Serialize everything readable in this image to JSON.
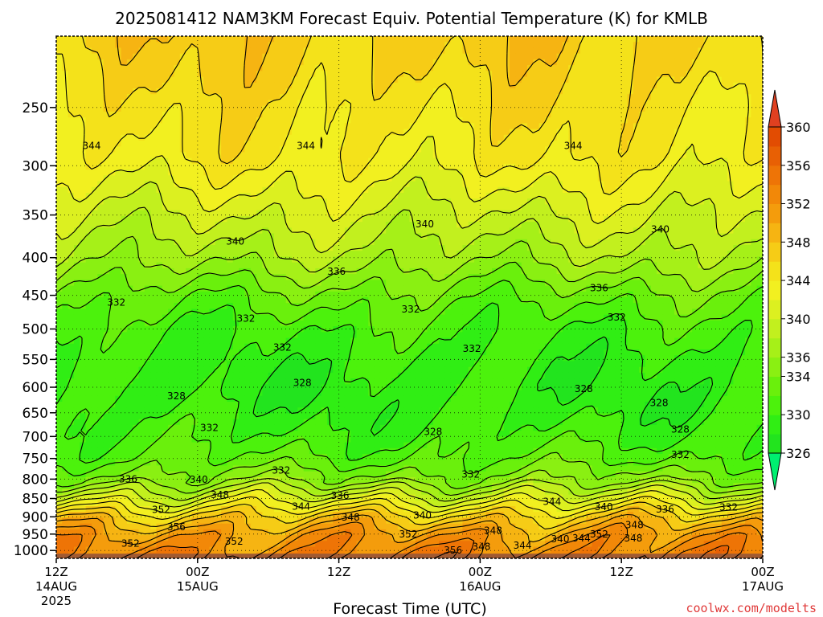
{
  "chart_data": {
    "type": "heatmap",
    "title": "2025081412 NAM3KM Forecast Equiv. Potential Temperature (K) for KMLB",
    "xlabel": "Forecast Time (UTC)",
    "ylabel": "",
    "y_scale": "log",
    "y_reversed": true,
    "ylim": [
      1025,
      200
    ],
    "y_ticks": [
      250,
      300,
      350,
      400,
      450,
      500,
      550,
      600,
      650,
      700,
      750,
      800,
      850,
      900,
      950,
      1000
    ],
    "y_tick_labels": [
      "250",
      "300",
      "350",
      "400",
      "450",
      "500",
      "550",
      "600",
      "650",
      "700",
      "750",
      "800",
      "850",
      "900",
      "950",
      "1000"
    ],
    "x_ticks": [
      {
        "hour": 0,
        "line1": "12Z",
        "line2": "14AUG",
        "line3": "2025"
      },
      {
        "hour": 12,
        "line1": "00Z",
        "line2": "15AUG",
        "line3": ""
      },
      {
        "hour": 24,
        "line1": "12Z",
        "line2": "",
        "line3": ""
      },
      {
        "hour": 36,
        "line1": "00Z",
        "line2": "16AUG",
        "line3": ""
      },
      {
        "hour": 48,
        "line1": "12Z",
        "line2": "",
        "line3": ""
      },
      {
        "hour": 60,
        "line1": "00Z",
        "line2": "17AUG",
        "line3": ""
      }
    ],
    "xlim": [
      0,
      60
    ],
    "grid": true,
    "colorbar": {
      "placement": "right",
      "levels": [
        326,
        328,
        330,
        332,
        334,
        336,
        338,
        340,
        342,
        344,
        346,
        348,
        350,
        352,
        354,
        356,
        358,
        360
      ],
      "labels": [
        "326",
        "330",
        "334",
        "336",
        "340",
        "344",
        "348",
        "352",
        "356",
        "360"
      ],
      "colors": [
        "#22e41e",
        "#30ee14",
        "#4cf20c",
        "#6af00c",
        "#8af012",
        "#a6f018",
        "#c2f01e",
        "#dcf020",
        "#f2f020",
        "#f4e21a",
        "#f6cc16",
        "#f6b412",
        "#f49c0c",
        "#f28808",
        "#ee7406",
        "#e86004",
        "#e24c02"
      ],
      "under_color": "#00f070",
      "over_color": "#e04020"
    },
    "surface_color": "#a05a32",
    "surface_pressure": 1010,
    "contour_labels": [
      {
        "value": "344",
        "hour": 3.0,
        "p": 282
      },
      {
        "value": "344",
        "hour": 21.2,
        "p": 282
      },
      {
        "value": "344",
        "hour": 43.9,
        "p": 282
      },
      {
        "value": "340",
        "hour": 31.3,
        "p": 360
      },
      {
        "value": "340",
        "hour": 51.3,
        "p": 366
      },
      {
        "value": "340",
        "hour": 15.2,
        "p": 380
      },
      {
        "value": "336",
        "hour": 23.8,
        "p": 418
      },
      {
        "value": "336",
        "hour": 46.1,
        "p": 440
      },
      {
        "value": "332",
        "hour": 5.1,
        "p": 460
      },
      {
        "value": "332",
        "hour": 30.1,
        "p": 470
      },
      {
        "value": "332",
        "hour": 16.1,
        "p": 484
      },
      {
        "value": "332",
        "hour": 47.6,
        "p": 482
      },
      {
        "value": "332",
        "hour": 19.2,
        "p": 530
      },
      {
        "value": "332",
        "hour": 35.3,
        "p": 532
      },
      {
        "value": "328",
        "hour": 20.9,
        "p": 592
      },
      {
        "value": "328",
        "hour": 10.2,
        "p": 617
      },
      {
        "value": "328",
        "hour": 44.8,
        "p": 603
      },
      {
        "value": "328",
        "hour": 51.2,
        "p": 630
      },
      {
        "value": "332",
        "hour": 13.0,
        "p": 681
      },
      {
        "value": "328",
        "hour": 32.0,
        "p": 690
      },
      {
        "value": "328",
        "hour": 53.0,
        "p": 685
      },
      {
        "value": "332",
        "hour": 53.0,
        "p": 741
      },
      {
        "value": "332",
        "hour": 19.1,
        "p": 778
      },
      {
        "value": "332",
        "hour": 35.2,
        "p": 788
      },
      {
        "value": "336",
        "hour": 6.1,
        "p": 800
      },
      {
        "value": "340",
        "hour": 12.1,
        "p": 801
      },
      {
        "value": "348",
        "hour": 13.9,
        "p": 840
      },
      {
        "value": "336",
        "hour": 24.1,
        "p": 842
      },
      {
        "value": "344",
        "hour": 20.8,
        "p": 872
      },
      {
        "value": "352",
        "hour": 8.9,
        "p": 880
      },
      {
        "value": "344",
        "hour": 42.1,
        "p": 858
      },
      {
        "value": "340",
        "hour": 46.5,
        "p": 873
      },
      {
        "value": "336",
        "hour": 51.7,
        "p": 879
      },
      {
        "value": "332",
        "hour": 57.1,
        "p": 874
      },
      {
        "value": "348",
        "hour": 25.0,
        "p": 902
      },
      {
        "value": "340",
        "hour": 31.1,
        "p": 896
      },
      {
        "value": "348",
        "hour": 49.1,
        "p": 924
      },
      {
        "value": "356",
        "hour": 10.2,
        "p": 929
      },
      {
        "value": "348",
        "hour": 37.1,
        "p": 940
      },
      {
        "value": "352",
        "hour": 29.9,
        "p": 951
      },
      {
        "value": "352",
        "hour": 46.1,
        "p": 951
      },
      {
        "value": "352",
        "hour": 6.3,
        "p": 978
      },
      {
        "value": "352",
        "hour": 15.1,
        "p": 972
      },
      {
        "value": "340",
        "hour": 42.8,
        "p": 965
      },
      {
        "value": "344",
        "hour": 44.6,
        "p": 962
      },
      {
        "value": "348",
        "hour": 49.0,
        "p": 962
      },
      {
        "value": "348",
        "hour": 36.1,
        "p": 988
      },
      {
        "value": "344",
        "hour": 39.6,
        "p": 985
      },
      {
        "value": "356",
        "hour": 33.7,
        "p": 1000
      }
    ]
  },
  "credit": "coolwx.com/modelts"
}
